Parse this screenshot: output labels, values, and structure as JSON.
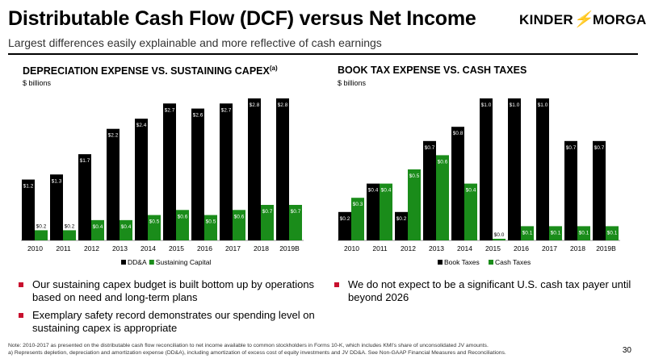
{
  "header": {
    "title": "Distributable Cash Flow (DCF) versus Net Income",
    "subtitle": "Largest differences easily explainable and more reflective of cash earnings",
    "logo_left": "KINDER",
    "logo_bolt": "⚡",
    "logo_right": "MORGAN",
    "brand_color": "#c8102e"
  },
  "left_panel": {
    "title": "DEPRECIATION EXPENSE VS. SUSTAINING CAPEX",
    "title_sup": "(a)",
    "units": "$ billions"
  },
  "right_panel": {
    "title": "BOOK TAX EXPENSE VS. CASH TAXES",
    "units": "$ billions"
  },
  "chart_data": [
    {
      "type": "bar",
      "categories": [
        "2010",
        "2011",
        "2012",
        "2013",
        "2014",
        "2015",
        "2016",
        "2017",
        "2018",
        "2019B"
      ],
      "series": [
        {
          "name": "DD&A",
          "color": "#000000",
          "values": [
            1.2,
            1.3,
            1.7,
            2.2,
            2.4,
            2.7,
            2.6,
            2.7,
            2.8,
            2.8
          ],
          "labels": [
            "$1.2",
            "$1.3",
            "$1.7",
            "$2.2",
            "$2.4",
            "$2.7",
            "$2.6",
            "$2.7",
            "$2.8",
            "$2.8"
          ]
        },
        {
          "name": "Sustaining Capital",
          "color": "#1a8c1a",
          "values": [
            0.2,
            0.2,
            0.4,
            0.4,
            0.5,
            0.6,
            0.5,
            0.6,
            0.7,
            0.7
          ],
          "labels": [
            "$0.2",
            "$0.2",
            "$0.4",
            "$0.4",
            "$0.5",
            "$0.6",
            "$0.5",
            "$0.6",
            "$0.7",
            "$0.7"
          ]
        }
      ],
      "legend": "bottom",
      "grid": false
    },
    {
      "type": "bar",
      "categories": [
        "2010",
        "2011",
        "2012",
        "2013",
        "2014",
        "2015",
        "2016",
        "2017",
        "2018",
        "2019B"
      ],
      "series": [
        {
          "name": "Book Taxes",
          "color": "#000000",
          "values": [
            0.2,
            0.4,
            0.2,
            0.7,
            0.8,
            1.0,
            1.0,
            1.0,
            0.7,
            0.7
          ],
          "labels": [
            "$0.2",
            "$0.4",
            "$0.2",
            "$0.7",
            "$0.8",
            "$1.0",
            "$1.0",
            "$1.0",
            "$0.7",
            "$0.7"
          ]
        },
        {
          "name": "Cash Taxes",
          "color": "#1a8c1a",
          "values": [
            0.3,
            0.4,
            0.5,
            0.6,
            0.4,
            0.0,
            0.1,
            0.1,
            0.1,
            0.1
          ],
          "labels": [
            "$0.3",
            "$0.4",
            "$0.5",
            "$0.6",
            "$0.4",
            "$0.0",
            "$0.1",
            "$0.1",
            "$0.1",
            "$0.1"
          ]
        }
      ],
      "legend": "bottom",
      "grid": false
    }
  ],
  "bullets_left": [
    "Our sustaining capex budget is built bottom up by operations based on need and long-term plans",
    "Exemplary safety record demonstrates our spending level on sustaining capex is appropriate"
  ],
  "bullets_right": [
    "We do not expect to be a significant U.S. cash tax payer until beyond 2026"
  ],
  "footnote": {
    "note": "Note:  2010-2017 as presented on the distributable cash flow reconciliation to net income available to common stockholders in Forms 10-K, which includes KMI's share of unconsolidated JV amounts.",
    "a": "a)   Represents depletion, depreciation and amortization expense (DD&A), including amortization of excess cost of equity investments and JV DD&A. See Non-GAAP Financial Measures and Reconciliations."
  },
  "page_number": "30"
}
